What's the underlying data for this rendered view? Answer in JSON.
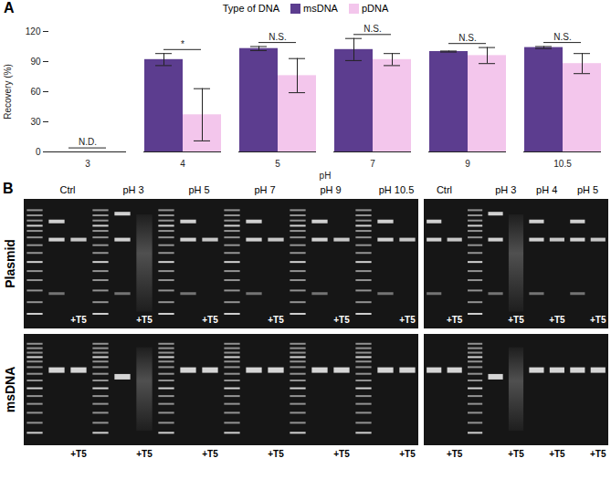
{
  "chart_data": {
    "type": "bar",
    "panel_label": "A",
    "legend_title": "Type of DNA",
    "legend": "top",
    "x_label": "pH",
    "y_label": "Recovery (%)",
    "categories": [
      "3",
      "4",
      "5",
      "7",
      "9",
      "10.5"
    ],
    "series": [
      {
        "name": "msDNA",
        "color": "#5c3d8f",
        "values": [
          0,
          92,
          103,
          102,
          100,
          104
        ],
        "error": [
          0,
          6,
          2,
          11,
          0.5,
          1
        ]
      },
      {
        "name": "pDNA",
        "color": "#f3c6ec",
        "values": [
          0,
          37,
          76,
          92,
          96,
          88
        ],
        "error": [
          0,
          26,
          17,
          6,
          8,
          10
        ]
      }
    ],
    "significance": [
      "N.D.",
      "*",
      "N.S.",
      "N.S.",
      "N.S.",
      "N.S."
    ],
    "ylim": [
      0,
      120
    ],
    "yticks": [
      0,
      30,
      60,
      90,
      120
    ],
    "grid": false
  },
  "panel_b": {
    "panel_label": "B",
    "rows": [
      "Plasmid",
      "msDNA"
    ],
    "treatment": "+T5",
    "gels": [
      {
        "groups": [
          "Ctrl",
          "pH 3",
          "pH 5",
          "pH 7",
          "pH 9",
          "pH 10.5"
        ]
      },
      {
        "groups": [
          "Ctrl",
          "pH 3",
          "pH 4",
          "pH 5"
        ]
      }
    ]
  }
}
